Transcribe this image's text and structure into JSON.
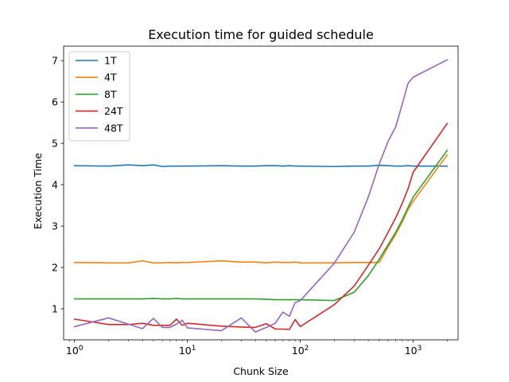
{
  "chart_data": {
    "type": "line",
    "title": "Execution time for guided schedule",
    "xlabel": "Chunk Size",
    "ylabel": "Execution Time",
    "xscale": "log",
    "xlim": [
      0.8,
      2500
    ],
    "ylim": [
      0.25,
      7.35
    ],
    "xticks": [
      {
        "base": "10",
        "exp": "0",
        "value": 1
      },
      {
        "base": "10",
        "exp": "1",
        "value": 10
      },
      {
        "base": "10",
        "exp": "2",
        "value": 100
      },
      {
        "base": "10",
        "exp": "3",
        "value": 1000
      }
    ],
    "yticks": [
      {
        "label": "1",
        "value": 1
      },
      {
        "label": "2",
        "value": 2
      },
      {
        "label": "3",
        "value": 3
      },
      {
        "label": "4",
        "value": 4
      },
      {
        "label": "5",
        "value": 5
      },
      {
        "label": "6",
        "value": 6
      },
      {
        "label": "7",
        "value": 7
      }
    ],
    "legend_position": "top-left",
    "grid": false,
    "series": [
      {
        "name": "1T",
        "color": "#1f77b4",
        "x": [
          1,
          2,
          3,
          4,
          5,
          6,
          7,
          8,
          9,
          10,
          20,
          30,
          40,
          50,
          60,
          70,
          80,
          90,
          100,
          200,
          300,
          400,
          500,
          600,
          700,
          800,
          900,
          1000,
          2000
        ],
        "y": [
          4.46,
          4.45,
          4.48,
          4.46,
          4.48,
          4.44,
          4.45,
          4.45,
          4.45,
          4.45,
          4.46,
          4.45,
          4.45,
          4.46,
          4.46,
          4.45,
          4.46,
          4.45,
          4.45,
          4.44,
          4.45,
          4.45,
          4.47,
          4.46,
          4.45,
          4.45,
          4.46,
          4.45,
          4.45
        ]
      },
      {
        "name": "4T",
        "color": "#ff7f0e",
        "x": [
          1,
          2,
          3,
          4,
          5,
          6,
          7,
          8,
          9,
          10,
          20,
          30,
          40,
          50,
          60,
          70,
          80,
          90,
          100,
          200,
          300,
          400,
          500,
          600,
          700,
          800,
          900,
          1000,
          2000
        ],
        "y": [
          2.12,
          2.11,
          2.11,
          2.16,
          2.11,
          2.11,
          2.12,
          2.11,
          2.12,
          2.12,
          2.16,
          2.13,
          2.13,
          2.11,
          2.13,
          2.12,
          2.12,
          2.13,
          2.11,
          2.11,
          2.12,
          2.12,
          2.12,
          2.5,
          2.8,
          3.1,
          3.4,
          3.6,
          4.72
        ]
      },
      {
        "name": "8T",
        "color": "#2ca02c",
        "x": [
          1,
          2,
          3,
          4,
          5,
          6,
          7,
          8,
          9,
          10,
          20,
          30,
          40,
          50,
          60,
          70,
          80,
          90,
          100,
          200,
          300,
          400,
          500,
          600,
          700,
          800,
          900,
          1000,
          2000
        ],
        "y": [
          1.24,
          1.24,
          1.24,
          1.24,
          1.25,
          1.24,
          1.24,
          1.25,
          1.24,
          1.24,
          1.24,
          1.24,
          1.24,
          1.23,
          1.22,
          1.22,
          1.22,
          1.22,
          1.22,
          1.2,
          1.4,
          1.8,
          2.2,
          2.55,
          2.85,
          3.15,
          3.45,
          3.7,
          4.83
        ]
      },
      {
        "name": "24T",
        "color": "#d62728",
        "x": [
          1,
          2,
          3,
          4,
          5,
          6,
          7,
          8,
          9,
          10,
          20,
          30,
          40,
          50,
          60,
          70,
          80,
          90,
          100,
          200,
          300,
          400,
          500,
          600,
          700,
          800,
          900,
          1000,
          2000
        ],
        "y": [
          0.75,
          0.62,
          0.62,
          0.65,
          0.6,
          0.6,
          0.6,
          0.75,
          0.6,
          0.65,
          0.58,
          0.56,
          0.55,
          0.64,
          0.51,
          0.51,
          0.5,
          0.74,
          0.57,
          1.1,
          1.55,
          2.05,
          2.45,
          2.85,
          3.2,
          3.55,
          3.9,
          4.3,
          5.48
        ]
      },
      {
        "name": "48T",
        "color": "#9467bd",
        "x": [
          1,
          2,
          3,
          4,
          5,
          6,
          7,
          8,
          9,
          10,
          20,
          30,
          40,
          50,
          60,
          70,
          80,
          90,
          100,
          200,
          300,
          400,
          500,
          600,
          700,
          800,
          900,
          1000,
          2000
        ],
        "y": [
          0.57,
          0.78,
          0.63,
          0.52,
          0.77,
          0.55,
          0.55,
          0.63,
          0.72,
          0.54,
          0.47,
          0.78,
          0.44,
          0.55,
          0.65,
          0.92,
          0.82,
          1.15,
          1.2,
          2.1,
          2.85,
          3.7,
          4.5,
          5.05,
          5.4,
          5.95,
          6.45,
          6.6,
          7.02
        ]
      }
    ]
  }
}
